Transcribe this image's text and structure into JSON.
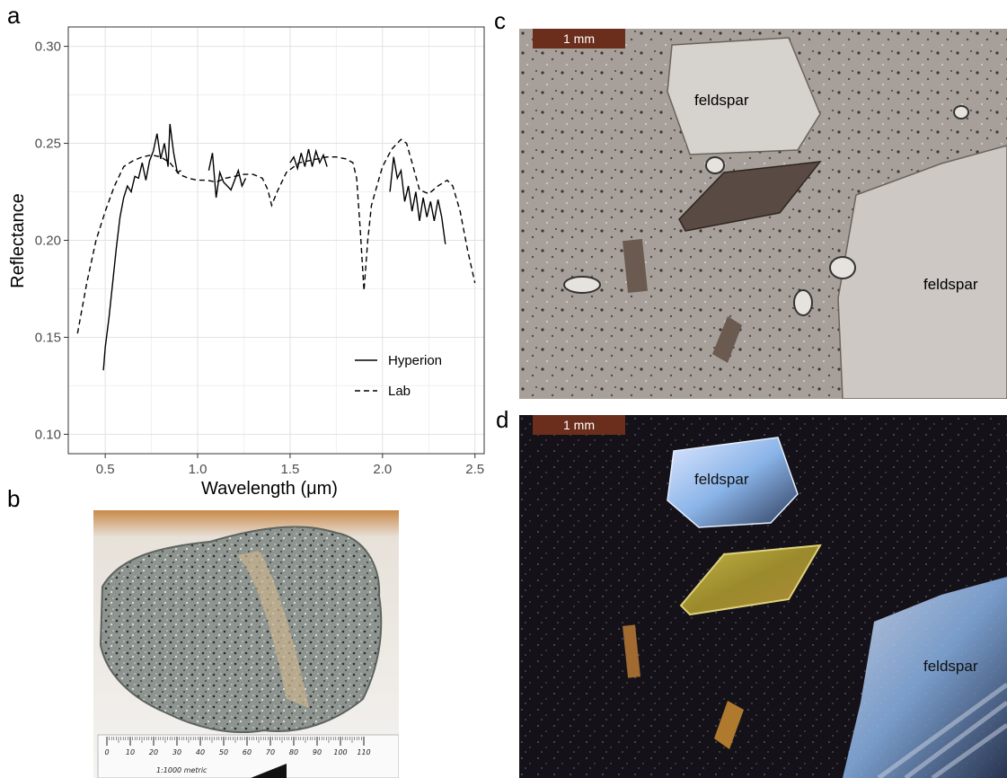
{
  "panels": {
    "a": "a",
    "b": "b",
    "c": "c",
    "d": "d"
  },
  "chart_data": {
    "type": "line",
    "xlabel": "Wavelength (μm)",
    "ylabel": "Reflectance",
    "xlim": [
      0.3,
      2.55
    ],
    "ylim": [
      0.09,
      0.31
    ],
    "xticks": [
      0.5,
      1.0,
      1.5,
      2.0,
      2.5
    ],
    "xtick_labels": [
      "0.5",
      "1.0",
      "1.5",
      "2.0",
      "2.5"
    ],
    "yticks": [
      0.1,
      0.15,
      0.2,
      0.25,
      0.3
    ],
    "ytick_labels": [
      "0.10",
      "0.15",
      "0.20",
      "0.25",
      "0.30"
    ],
    "grid": true,
    "legend_position": "bottom-right",
    "series": [
      {
        "name": "Hyperion",
        "style": "solid",
        "segments": [
          [
            [
              0.49,
              0.133
            ],
            [
              0.5,
              0.145
            ],
            [
              0.52,
              0.16
            ],
            [
              0.54,
              0.178
            ],
            [
              0.56,
              0.196
            ],
            [
              0.58,
              0.212
            ],
            [
              0.6,
              0.222
            ],
            [
              0.62,
              0.228
            ],
            [
              0.64,
              0.225
            ],
            [
              0.66,
              0.233
            ],
            [
              0.68,
              0.232
            ],
            [
              0.7,
              0.24
            ],
            [
              0.72,
              0.231
            ],
            [
              0.74,
              0.241
            ],
            [
              0.76,
              0.246
            ],
            [
              0.78,
              0.255
            ],
            [
              0.8,
              0.242
            ],
            [
              0.82,
              0.25
            ],
            [
              0.84,
              0.238
            ],
            [
              0.85,
              0.26
            ],
            [
              0.87,
              0.245
            ],
            [
              0.89,
              0.235
            ],
            [
              0.91,
              0.236
            ]
          ],
          [
            [
              1.06,
              0.236
            ],
            [
              1.08,
              0.245
            ],
            [
              1.1,
              0.222
            ],
            [
              1.12,
              0.235
            ],
            [
              1.14,
              0.23
            ],
            [
              1.16,
              0.228
            ],
            [
              1.18,
              0.226
            ],
            [
              1.2,
              0.231
            ],
            [
              1.22,
              0.236
            ],
            [
              1.24,
              0.228
            ],
            [
              1.26,
              0.232
            ]
          ],
          [
            [
              1.5,
              0.24
            ],
            [
              1.52,
              0.243
            ],
            [
              1.54,
              0.237
            ],
            [
              1.56,
              0.245
            ],
            [
              1.58,
              0.238
            ],
            [
              1.6,
              0.247
            ],
            [
              1.62,
              0.238
            ],
            [
              1.64,
              0.246
            ],
            [
              1.66,
              0.24
            ],
            [
              1.68,
              0.244
            ],
            [
              1.7,
              0.238
            ]
          ],
          [
            [
              2.04,
              0.225
            ],
            [
              2.06,
              0.243
            ],
            [
              2.08,
              0.232
            ],
            [
              2.1,
              0.236
            ],
            [
              2.12,
              0.22
            ],
            [
              2.14,
              0.228
            ],
            [
              2.16,
              0.215
            ],
            [
              2.18,
              0.225
            ],
            [
              2.2,
              0.21
            ],
            [
              2.22,
              0.222
            ],
            [
              2.24,
              0.212
            ],
            [
              2.26,
              0.22
            ],
            [
              2.28,
              0.21
            ],
            [
              2.3,
              0.221
            ],
            [
              2.32,
              0.212
            ],
            [
              2.34,
              0.198
            ]
          ]
        ]
      },
      {
        "name": "Lab",
        "style": "dashed",
        "segments": [
          [
            [
              0.35,
              0.152
            ],
            [
              0.4,
              0.178
            ],
            [
              0.45,
              0.2
            ],
            [
              0.5,
              0.215
            ],
            [
              0.55,
              0.228
            ],
            [
              0.6,
              0.238
            ],
            [
              0.65,
              0.241
            ],
            [
              0.7,
              0.243
            ],
            [
              0.75,
              0.244
            ],
            [
              0.8,
              0.243
            ],
            [
              0.85,
              0.24
            ],
            [
              0.9,
              0.234
            ],
            [
              0.95,
              0.232
            ],
            [
              1.0,
              0.231
            ],
            [
              1.05,
              0.231
            ],
            [
              1.1,
              0.23
            ],
            [
              1.15,
              0.232
            ],
            [
              1.2,
              0.233
            ],
            [
              1.25,
              0.234
            ],
            [
              1.3,
              0.234
            ],
            [
              1.35,
              0.232
            ],
            [
              1.38,
              0.226
            ],
            [
              1.4,
              0.218
            ],
            [
              1.43,
              0.225
            ],
            [
              1.48,
              0.235
            ],
            [
              1.55,
              0.24
            ],
            [
              1.6,
              0.241
            ],
            [
              1.65,
              0.242
            ],
            [
              1.7,
              0.243
            ],
            [
              1.75,
              0.243
            ],
            [
              1.8,
              0.242
            ],
            [
              1.84,
              0.24
            ],
            [
              1.86,
              0.232
            ],
            [
              1.88,
              0.205
            ],
            [
              1.9,
              0.174
            ],
            [
              1.92,
              0.2
            ],
            [
              1.94,
              0.218
            ],
            [
              1.97,
              0.228
            ],
            [
              2.0,
              0.238
            ],
            [
              2.05,
              0.247
            ],
            [
              2.1,
              0.252
            ],
            [
              2.13,
              0.25
            ],
            [
              2.16,
              0.24
            ],
            [
              2.2,
              0.226
            ],
            [
              2.25,
              0.224
            ],
            [
              2.3,
              0.228
            ],
            [
              2.35,
              0.231
            ],
            [
              2.38,
              0.228
            ],
            [
              2.42,
              0.215
            ],
            [
              2.46,
              0.195
            ],
            [
              2.5,
              0.178
            ]
          ]
        ]
      }
    ]
  },
  "photos": {
    "c": {
      "scale": "1 mm",
      "labels": [
        "feldspar",
        "feldspar"
      ]
    },
    "d": {
      "scale": "1 mm",
      "labels": [
        "feldspar",
        "feldspar"
      ]
    },
    "b": {
      "ruler": "1:1000 metric",
      "ruler_ticks": [
        "0",
        "10",
        "20",
        "30",
        "40",
        "50",
        "60",
        "70",
        "80",
        "90",
        "100",
        "110"
      ]
    }
  }
}
